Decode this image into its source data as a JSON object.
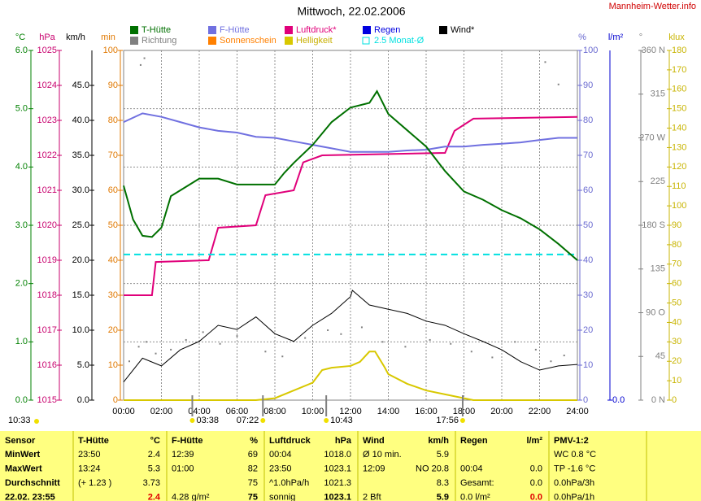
{
  "chart_data": {
    "type": "line",
    "title": "Mittwoch, 22.02.2006",
    "site": "Mannheim-Wetter.info",
    "xlim": [
      0,
      24
    ],
    "xticks": [
      {
        "value": 0,
        "label": "00:00"
      },
      {
        "value": 2,
        "label": "02:00"
      },
      {
        "value": 4,
        "label": "04:00"
      },
      {
        "value": 6,
        "label": "06:00"
      },
      {
        "value": 8,
        "label": "08:00"
      },
      {
        "value": 10,
        "label": "10:00"
      },
      {
        "value": 12,
        "label": "12:00"
      },
      {
        "value": 14,
        "label": "14:00"
      },
      {
        "value": 16,
        "label": "16:00"
      },
      {
        "value": 18,
        "label": "18:00"
      },
      {
        "value": 20,
        "label": "20:00"
      },
      {
        "value": 22,
        "label": "22:00"
      },
      {
        "value": 24,
        "label": "24:00"
      }
    ],
    "grid": true,
    "axes": [
      {
        "id": "C",
        "label": "°C",
        "color": "#008000",
        "lim": [
          0,
          6
        ],
        "ticks": [
          {
            "value": 0,
            "label": "0.0"
          },
          {
            "value": 1,
            "label": "1.0"
          },
          {
            "value": 2,
            "label": "2.0"
          },
          {
            "value": 3,
            "label": "3.0"
          },
          {
            "value": 4,
            "label": "4.0"
          },
          {
            "value": 5,
            "label": "5.0"
          },
          {
            "value": 6,
            "label": "6.0"
          }
        ]
      },
      {
        "id": "hPa",
        "label": "hPa",
        "color": "#c8006e",
        "lim": [
          1015,
          1025
        ],
        "ticks": [
          1015,
          1016,
          1017,
          1018,
          1019,
          1020,
          1021,
          1022,
          1023,
          1024,
          1025
        ]
      },
      {
        "id": "kmh",
        "label": "km/h",
        "color": "#000000",
        "lim": [
          0,
          50
        ],
        "ticks": [
          {
            "value": 0,
            "label": "0.0"
          },
          {
            "value": 5,
            "label": "5.0"
          },
          {
            "value": 10,
            "label": "10.0"
          },
          {
            "value": 15,
            "label": "15.0"
          },
          {
            "value": 20,
            "label": "20.0"
          },
          {
            "value": 25,
            "label": "25.0"
          },
          {
            "value": 30,
            "label": "30.0"
          },
          {
            "value": 35,
            "label": "35.0"
          },
          {
            "value": 40,
            "label": "40.0"
          },
          {
            "value": 45,
            "label": "45.0"
          }
        ]
      },
      {
        "id": "min",
        "label": "min",
        "color": "#e07800",
        "lim": [
          0,
          100
        ],
        "ticks": [
          0,
          10,
          20,
          30,
          40,
          50,
          60,
          70,
          80,
          90,
          100
        ]
      },
      {
        "id": "pct",
        "label": "%",
        "color": "#6a6ad0",
        "lim": [
          0,
          100
        ],
        "ticks": [
          0,
          10,
          20,
          30,
          40,
          50,
          60,
          70,
          80,
          90,
          100
        ]
      },
      {
        "id": "rain",
        "label": "l/m²",
        "color": "#0000d0",
        "lim": [
          0,
          10
        ],
        "ticks": [
          {
            "value": 0,
            "label": "0.0"
          }
        ]
      },
      {
        "id": "deg",
        "label": "°",
        "color": "#808080",
        "lim": [
          0,
          360
        ],
        "ticks": [
          {
            "value": 0,
            "label": "0 N"
          },
          45,
          {
            "value": 90,
            "label": "90 O"
          },
          135,
          {
            "value": 180,
            "label": "180 S"
          },
          225,
          {
            "value": 270,
            "label": "270 W"
          },
          315,
          {
            "value": 360,
            "label": "360 N"
          }
        ]
      },
      {
        "id": "klux",
        "label": "klux",
        "color": "#c8b400",
        "lim": [
          0,
          180
        ],
        "ticks": [
          0,
          10,
          20,
          30,
          40,
          50,
          60,
          70,
          80,
          90,
          100,
          110,
          120,
          130,
          140,
          150,
          160,
          170,
          180
        ]
      }
    ],
    "series": [
      {
        "name": "T-Hütte",
        "color": "#007000",
        "axis": "C",
        "style": "line",
        "x": [
          0,
          0.5,
          1,
          1.5,
          2,
          2.5,
          3,
          4,
          5,
          6,
          7,
          8,
          8.5,
          9,
          10,
          11,
          12,
          13,
          13.4,
          14,
          15,
          16,
          17,
          18,
          19,
          20,
          21,
          22,
          23,
          24
        ],
        "values": [
          3.68,
          3.1,
          2.82,
          2.8,
          2.96,
          3.5,
          3.6,
          3.8,
          3.8,
          3.7,
          3.7,
          3.7,
          3.9,
          4.07,
          4.38,
          4.77,
          5.02,
          5.1,
          5.3,
          4.91,
          4.63,
          4.35,
          3.93,
          3.58,
          3.44,
          3.26,
          3.12,
          2.93,
          2.68,
          2.4
        ]
      },
      {
        "name": "Richtung",
        "color": "#808080",
        "axis": "deg",
        "style": "dots",
        "x": [
          0.3,
          0.8,
          0.9,
          1.1,
          1.2,
          1.7,
          2.5,
          3.3,
          4.2,
          5.1,
          6.0,
          7.5,
          8.4,
          9.6,
          10.8,
          11.5,
          12.6,
          13.7,
          14.9,
          16.2,
          17.3,
          18.4,
          19.5,
          20.7,
          21.8,
          22.3,
          22.6,
          23.0,
          23.3
        ],
        "values": [
          40,
          55,
          345,
          352,
          60,
          48,
          52,
          62,
          70,
          58,
          66,
          50,
          45,
          64,
          72,
          68,
          75,
          60,
          55,
          62,
          58,
          50,
          44,
          60,
          52,
          348,
          40,
          325,
          46
        ]
      },
      {
        "name": "F-Hütte",
        "color": "#7070e0",
        "axis": "pct",
        "style": "line",
        "x": [
          0,
          1,
          2,
          3,
          4,
          5,
          6,
          7,
          8,
          9,
          10,
          11,
          12,
          13,
          14,
          15,
          16,
          17,
          18,
          19,
          20,
          21,
          22,
          23,
          24
        ],
        "values": [
          79.5,
          82,
          81,
          79.5,
          78,
          77,
          76.5,
          75.3,
          75,
          74,
          73,
          72,
          71,
          71,
          71,
          71.4,
          71.6,
          72.5,
          72.5,
          73,
          73.3,
          73.7,
          74.4,
          75,
          75
        ]
      },
      {
        "name": "Sonnenschein",
        "color": "#ff8000",
        "axis": "min",
        "style": "line",
        "x": [],
        "values": []
      },
      {
        "name": "Luftdruck*",
        "color": "#e0007a",
        "axis": "hPa",
        "style": "line",
        "x": [
          0,
          1.5,
          1.7,
          4.5,
          5,
          7,
          7.5,
          9,
          9.5,
          10.5,
          17,
          17.5,
          18.5,
          24
        ],
        "values": [
          1018.0,
          1018.0,
          1018.95,
          1019.0,
          1019.93,
          1020.0,
          1020.86,
          1021.0,
          1021.8,
          1022.0,
          1022.07,
          1022.7,
          1023.05,
          1023.1
        ]
      },
      {
        "name": "Helligkeit",
        "color": "#d8c800",
        "axis": "klux",
        "style": "line",
        "x": [
          0,
          7,
          8,
          9,
          10,
          10.5,
          11,
          12,
          12.5,
          13,
          13.3,
          13.8,
          14,
          15,
          16,
          17,
          18,
          18.5,
          24
        ],
        "values": [
          0,
          0,
          1,
          5,
          9,
          15.5,
          16.7,
          17.6,
          19.7,
          25,
          25,
          17,
          13.4,
          8.4,
          5,
          3,
          1,
          0,
          0
        ]
      },
      {
        "name": "Regen",
        "color": "#0000e0",
        "axis": "rain",
        "style": "line",
        "x": [],
        "values": []
      },
      {
        "name": "2.5 Monat-Ø",
        "color": "#00e0e0",
        "axis": "C",
        "style": "dashed",
        "x": [
          0,
          24
        ],
        "values": [
          2.5,
          2.5
        ]
      },
      {
        "name": "Wind*",
        "color": "#000000",
        "axis": "kmh",
        "style": "line",
        "x": [
          0,
          1,
          2,
          3,
          4,
          5,
          6,
          7,
          8,
          9,
          10,
          11,
          12,
          12.1,
          13,
          14,
          15,
          16,
          17,
          18,
          19,
          20,
          21,
          22,
          23,
          24
        ],
        "values": [
          2.6,
          6,
          4.9,
          7.2,
          8.4,
          10.7,
          10.1,
          11.9,
          9.5,
          8.4,
          10.7,
          12.4,
          14.8,
          15.7,
          13.6,
          13,
          12.4,
          11.3,
          10.7,
          9.5,
          8.4,
          7.2,
          5.5,
          4.3,
          4.9,
          5.1
        ]
      }
    ],
    "now": "10:33",
    "sun_markers": [
      "03:38",
      "07:22",
      "10:43",
      "17:56"
    ]
  },
  "table": {
    "header": [
      "Sensor",
      "T-Hütte",
      "°C",
      "F-Hütte",
      "%",
      "Luftdruck",
      "hPa",
      "Wind",
      "km/h",
      "Regen",
      "l/m²",
      "PMV-1:2"
    ],
    "rows": [
      [
        "MinWert",
        "23:50",
        "2.4",
        "12:39",
        "69",
        "00:04",
        "1018.0",
        "Ø 10 min.",
        "5.9",
        null,
        null,
        "WC 0.8 °C"
      ],
      [
        "MaxWert",
        "13:24",
        "5.3",
        "01:00",
        "82",
        "23:50",
        "1023.1",
        "12:09",
        "NO 20.8",
        "00:04",
        "0.0",
        "TP -1.6 °C"
      ],
      [
        "Durchschnitt",
        "(+ 1.23 )",
        "3.73",
        null,
        "75",
        "^1.0hPa/h",
        "1021.3",
        null,
        "8.3",
        "Gesamt:",
        "0.0",
        "0.0hPa/3h"
      ],
      [
        "22.02. 23:55",
        null,
        "2.4",
        "4.28 g/m²",
        "75",
        "sonnig",
        "1023.1",
        "2 Bft",
        "5.9",
        "0.0 l/m²",
        "0.0",
        "0.0hPa/1h"
      ]
    ]
  }
}
